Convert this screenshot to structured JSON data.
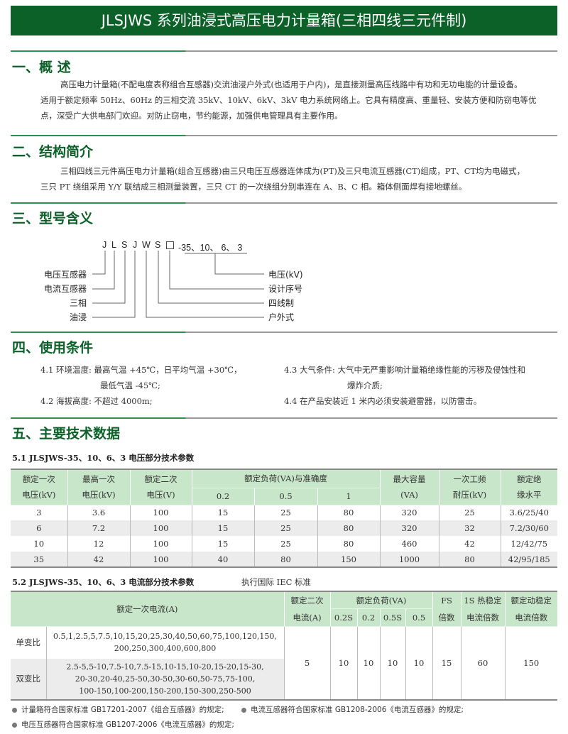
{
  "title": "JLSJWS 系列油浸式高压电力计量箱(三相四线三元件制)",
  "s1": {
    "heading": "一、概  述",
    "p1": "高压电力计量箱(不配电度表称组合互感器)交流油浸户外式(也适用于户内)，是直接测量高压线路中有功和无功电能的计量设备。",
    "p2": "适用于额定频率 50Hz、60Hz 的三相交流 35kV、10kV、6kV、3kV 电力系统网络上。它具有精度高、重量轻、安装方便和防窃电等优",
    "p3": "点，深受广大供电部门欢迎。对防止窃电，节约能源，加强供电管理具有主要作用。"
  },
  "s2": {
    "heading": "二、结构简介",
    "p1": "三相四线三元件高压电力计量箱(组合互感器)由三只电压互感器连体成为(PT)及三只电流互感器(CT)组成，PT、CT均为电磁式，",
    "p2": "三只 PT 绕组采用 Y/Y 联结成三相测量装置，三只 CT 的一次绕组分别串连在 A、B、C 相。箱体侧面焊有接地螺丝。"
  },
  "s3": {
    "heading": "三、型号含义",
    "code": [
      "J",
      "L",
      "S",
      "J",
      "W",
      "S"
    ],
    "suffix": "-35、10、 6、 3",
    "left_labels": [
      "电压互感器",
      "电流互感器",
      "三相",
      "油浸"
    ],
    "right_labels": [
      "电压(kV)",
      "设计序号",
      "四线制",
      "户外式"
    ]
  },
  "s4": {
    "heading": "四、使用条件",
    "c1a": "4.1  环境温度:  最高气温 +45℃，日平均气温 +30℃，",
    "c1b": "最低气温 -45℃;",
    "c2": "4.2  海拔高度:  不超过 4000m;",
    "c3a": "4.3  大气条件:  大气中无严重影响计量箱绝缘性能的污秽及侵蚀性和",
    "c3b": "爆炸介质;",
    "c4": "4.4  在产品安装近 1 米内必须安装避雷器，以防雷击。"
  },
  "s5": {
    "heading": "五、主要技术数据",
    "t1": {
      "caption": "5.1  JLSJWS-35、10、6、3 电压部分技术参数",
      "h": [
        "额定一次\n电压(kV)",
        "最高一次\n电压(kV)",
        "额定二次\n电压(V)",
        "额定负荷(VA)与准确度",
        "最大容量\n(VA)",
        "一次工频\n耐压(kV)",
        "额定绝\n缘水平"
      ],
      "sub": [
        "0.2",
        "0.5",
        "1"
      ],
      "rows": [
        [
          "3",
          "3.6",
          "100",
          "15",
          "25",
          "80",
          "320",
          "25",
          "3.6/25/40"
        ],
        [
          "6",
          "7.2",
          "100",
          "15",
          "25",
          "80",
          "320",
          "32",
          "7.2/30/60"
        ],
        [
          "10",
          "12",
          "100",
          "15",
          "25",
          "80",
          "460",
          "42",
          "12/42/75"
        ],
        [
          "35",
          "42",
          "100",
          "40",
          "80",
          "150",
          "1000",
          "80",
          "42/95/185"
        ]
      ]
    },
    "t2": {
      "caption": "5.2  JLSJWS-35、10、6、3 电流部分技术参数",
      "std": "执行国际 IEC 标准",
      "h": [
        "额定一次电流(A)",
        "额定二次\n电流(A)",
        "额定负荷(VA)",
        "FS\n倍数",
        "1S 热稳定\n电流倍数",
        "额定动稳定\n电流倍数"
      ],
      "sub": [
        "0.2S",
        "0.2",
        "0.5S",
        "0.5"
      ],
      "r1_label": "单变比",
      "r1_val": "0.5,1,2.5,5,7.5,10,15,20,25,30,40,50,60,75,100,120,150,\n200,250,300,400,600,800",
      "r2_label": "双变比",
      "r2_val": "2.5-5,5-10,7.5-10,7.5-15,10-15,10-20,15-20,15-30,\n20-30,20-40,25-50,30-50,30-60,50-75,75-100,\n100-150,100-200,150-200,150-300,250-500",
      "vals": [
        "5",
        "10",
        "10",
        "10",
        "10",
        "15",
        "60",
        "150"
      ]
    },
    "notes": [
      "计量箱符合国家标准 GB17201-2007《组合互感器》的规定;",
      "电流互感器符合国家标准 GB1208-2006《电流互感器》的规定;",
      "电压互感器符合国家标准 GB1207-2006《电流互感器》的规定;"
    ]
  }
}
